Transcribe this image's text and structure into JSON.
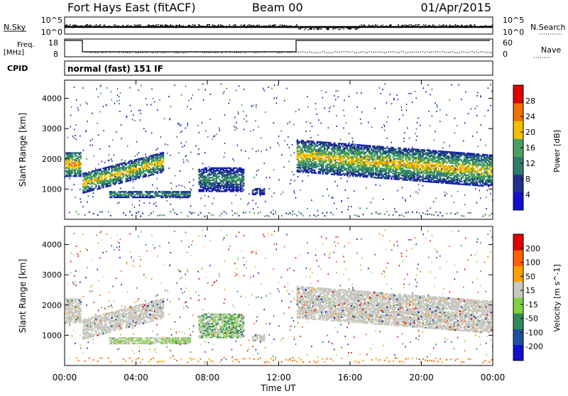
{
  "header": {
    "title": "Fort Hays East (fitACF)",
    "beam": "Beam 00",
    "date": "01/Apr/2015"
  },
  "noise_panel": {
    "left_label": "N.Sky",
    "right_label": "N.Search",
    "left_ticks": [
      "10^5",
      "10^0"
    ],
    "right_ticks": [
      "10^5",
      "10^0"
    ]
  },
  "freq_panel": {
    "left_label_1": "Freq.",
    "left_label_2": "[MHz]",
    "right_label": "Nave",
    "left_ticks": [
      "18",
      "8"
    ],
    "right_ticks": [
      "60",
      "0"
    ]
  },
  "cpid": {
    "label": "CPID",
    "text": "normal (fast) 151 IF"
  },
  "colors": {
    "power_scale": [
      "#1010d0",
      "#203090",
      "#2e7d6a",
      "#4aa060",
      "#f0c000",
      "#f07000",
      "#e00000"
    ],
    "velocity_scale": [
      "#e00000",
      "#ff6000",
      "#ffa000",
      "#c8c8c0",
      "#80d040",
      "#2e8b57",
      "#2050a0",
      "#1010d0"
    ],
    "ground_gray": "#c8c8c0"
  },
  "chart_data": [
    {
      "type": "heatmap",
      "name": "power",
      "ylabel": "Slant Range [km]",
      "yticks": [
        1000,
        2000,
        3000,
        4000
      ],
      "ylim": [
        0,
        4600
      ],
      "xlim": [
        0,
        24
      ],
      "colorbar": {
        "label": "Power [dB]",
        "ticks": [
          4,
          8,
          12,
          16,
          20,
          24,
          28
        ],
        "range": [
          0,
          32
        ]
      },
      "regions": [
        {
          "t0": 0.05,
          "t1": 0.9,
          "r0": 1400,
          "r1": 2200,
          "v": 18
        },
        {
          "t0": 1.0,
          "t1": 5.5,
          "r0": 850,
          "r1": 1500,
          "v": 16
        },
        {
          "t0": 2.5,
          "t1": 7.0,
          "r0": 700,
          "r1": 900,
          "v": 12
        },
        {
          "t0": 7.5,
          "t1": 10.0,
          "r0": 900,
          "r1": 1700,
          "v": 10
        },
        {
          "t0": 10.5,
          "t1": 11.2,
          "r0": 800,
          "r1": 1000,
          "v": 8
        },
        {
          "t0": 13.0,
          "t1": 24.0,
          "r0": 1550,
          "r1": 2600,
          "v": 16
        }
      ]
    },
    {
      "type": "heatmap",
      "name": "velocity",
      "ylabel": "Slant Range [km]",
      "xlabel": "Time UT",
      "yticks": [
        1000,
        2000,
        3000,
        4000
      ],
      "ylim": [
        0,
        4600
      ],
      "xlim": [
        0,
        24
      ],
      "xticks": [
        "00:00",
        "04:00",
        "08:00",
        "12:00",
        "16:00",
        "20:00",
        "00:00"
      ],
      "colorbar": {
        "label": "Velocity [m s^-1]",
        "ticks": [
          "200",
          "100",
          "50",
          "15",
          "-15",
          "-50",
          "-100",
          "-200"
        ]
      }
    }
  ]
}
